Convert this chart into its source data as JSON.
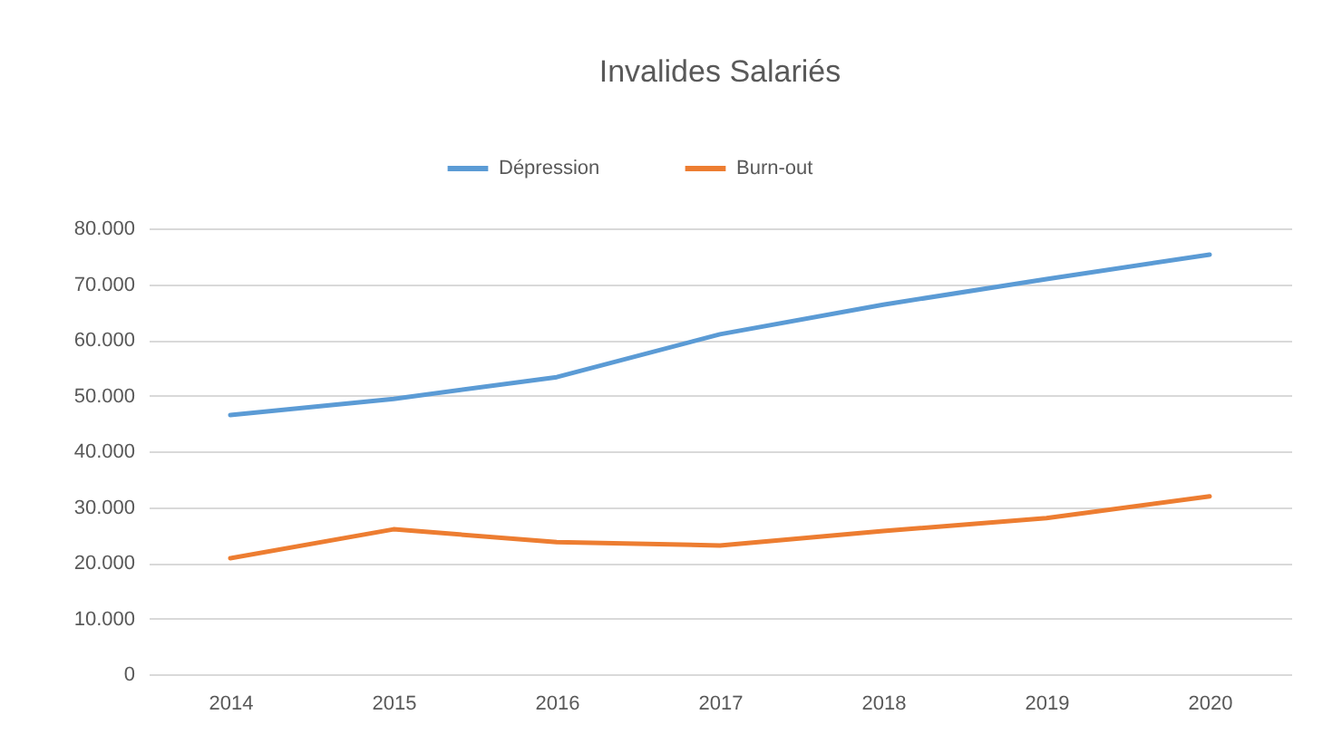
{
  "chart_data": {
    "type": "line",
    "title": "Invalides Salariés",
    "categories": [
      "2014",
      "2015",
      "2016",
      "2017",
      "2018",
      "2019",
      "2020"
    ],
    "series": [
      {
        "name": "Dépression",
        "color": "#5b9bd5",
        "values": [
          46500,
          49400,
          53300,
          61000,
          66300,
          70900,
          75300
        ]
      },
      {
        "name": "Burn-out",
        "color": "#ed7d31",
        "values": [
          20800,
          26000,
          23700,
          23100,
          25700,
          28000,
          31900
        ]
      }
    ],
    "ylim": [
      0,
      80000
    ],
    "yticks": [
      {
        "value": 0,
        "label": "0"
      },
      {
        "value": 10000,
        "label": "10.000"
      },
      {
        "value": 20000,
        "label": "20.000"
      },
      {
        "value": 30000,
        "label": "30.000"
      },
      {
        "value": 40000,
        "label": "40.000"
      },
      {
        "value": 50000,
        "label": "50.000"
      },
      {
        "value": 60000,
        "label": "60.000"
      },
      {
        "value": 70000,
        "label": "70.000"
      },
      {
        "value": 80000,
        "label": "80.000"
      }
    ],
    "grid": "y",
    "legend": "top",
    "marker": "none",
    "line_style": "solid"
  }
}
